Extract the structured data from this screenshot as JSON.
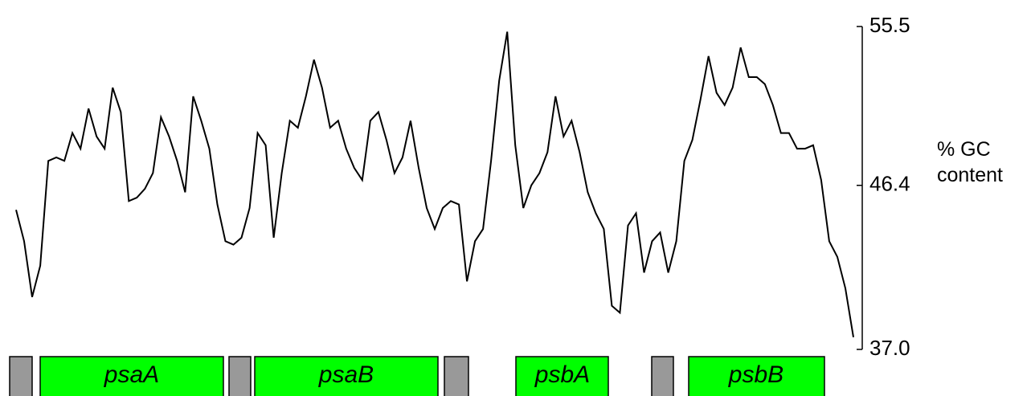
{
  "chart_data": {
    "type": "line",
    "ylabel": "% GC content",
    "color": "#000000",
    "values": [
      45.0,
      43.2,
      40.0,
      41.8,
      47.8,
      48.0,
      47.8,
      49.4,
      48.5,
      50.8,
      49.2,
      48.5,
      52.0,
      50.6,
      45.5,
      45.7,
      46.2,
      47.1,
      50.3,
      49.2,
      47.8,
      46.0,
      51.5,
      50.1,
      48.5,
      45.3,
      43.2,
      43.0,
      43.4,
      45.1,
      49.4,
      48.7,
      43.4,
      47.1,
      50.1,
      49.7,
      51.5,
      53.6,
      52.0,
      49.7,
      50.1,
      48.5,
      47.4,
      46.7,
      50.1,
      50.6,
      49.0,
      47.1,
      48.0,
      50.1,
      47.4,
      45.1,
      43.9,
      45.1,
      45.5,
      45.3,
      40.9,
      43.2,
      43.9,
      47.8,
      52.4,
      55.2,
      48.7,
      45.1,
      46.4,
      47.1,
      48.3,
      51.5,
      49.2,
      50.1,
      48.3,
      46.0,
      44.8,
      43.9,
      39.5,
      39.1,
      44.1,
      44.8,
      41.4,
      43.2,
      43.7,
      41.4,
      43.2,
      47.8,
      49.0,
      51.3,
      53.8,
      51.7,
      51.0,
      52.0,
      54.3,
      52.6,
      52.6,
      52.2,
      51.0,
      49.4,
      49.4,
      48.5,
      48.5,
      48.7,
      46.7,
      43.2,
      42.3,
      40.5,
      37.7
    ],
    "ylim": [
      37,
      55.5
    ],
    "yticks": [
      {
        "value": 37,
        "label": "37.0"
      },
      46.4,
      55.5
    ],
    "genes": [
      "psaA",
      "psaB",
      "psbA",
      "psbB"
    ]
  }
}
